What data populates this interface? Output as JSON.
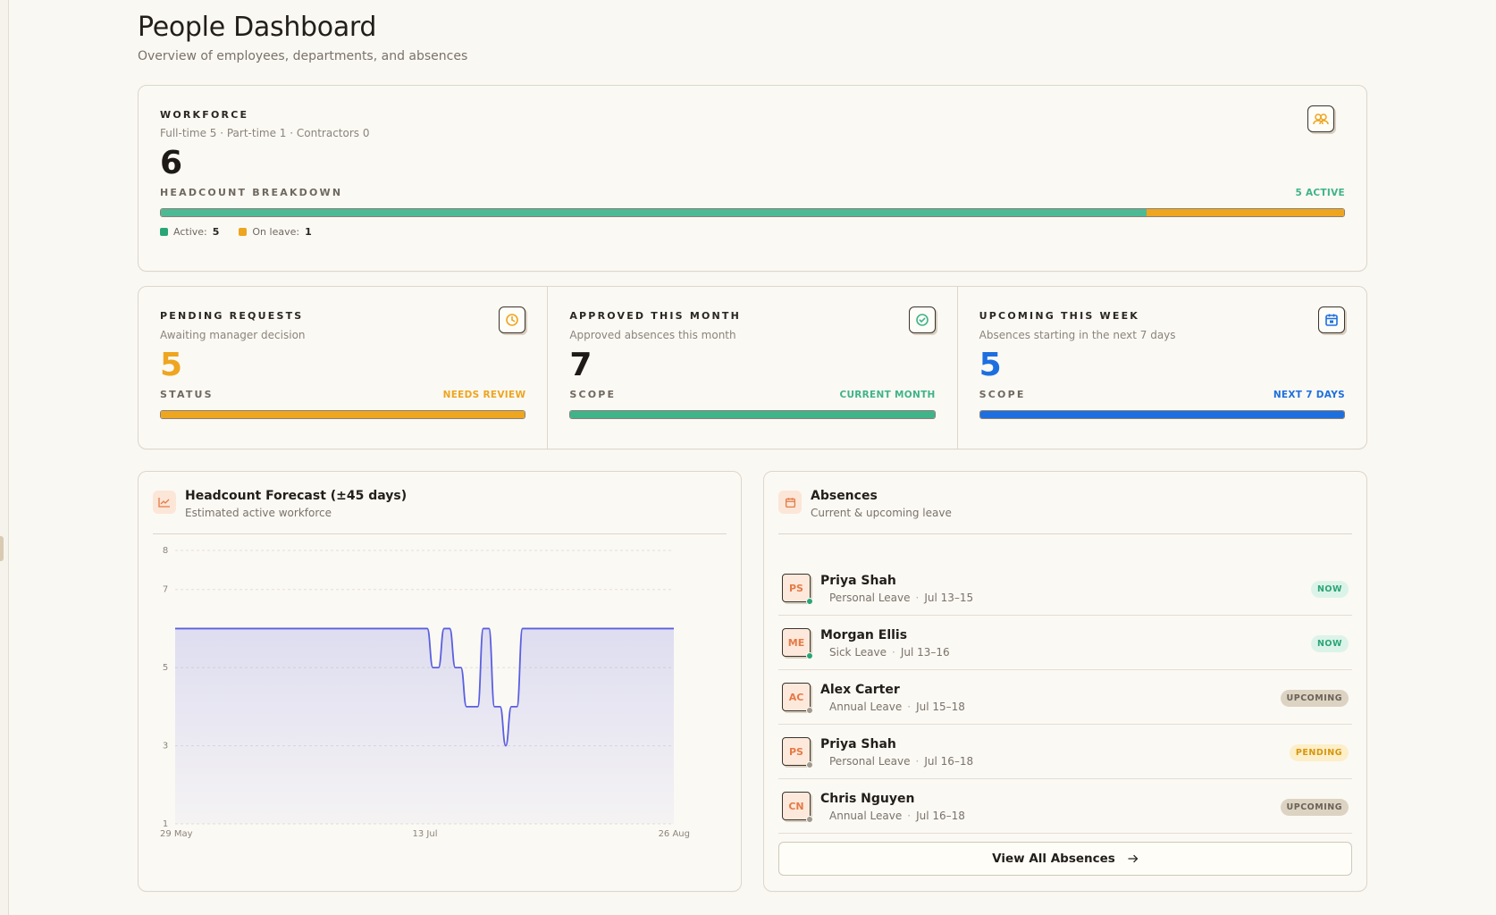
{
  "page": {
    "title": "People Dashboard",
    "subtitle": "Overview of employees, departments, and absences"
  },
  "workforce": {
    "label": "WORKFORCE",
    "breakdown_text": "Full-time 5 · Part-time 1 · Contractors 0",
    "total": "6",
    "bar_label": "HEADCOUNT BREAKDOWN",
    "active_tag": "5 ACTIVE",
    "active_count": 5,
    "on_leave_count": 1,
    "legend": {
      "active_label": "Active:",
      "active_value": "5",
      "leave_label": "On leave:",
      "leave_value": "1"
    },
    "icon": "people-icon"
  },
  "stats": [
    {
      "label": "PENDING REQUESTS",
      "subtitle": "Awaiting manager decision",
      "value": "5",
      "bar_label": "STATUS",
      "tag": "NEEDS REVIEW",
      "color": "#eea51f",
      "fill": 1.0,
      "icon": "clock-icon"
    },
    {
      "label": "APPROVED THIS MONTH",
      "subtitle": "Approved absences this month",
      "value": "7",
      "bar_label": "SCOPE",
      "tag": "CURRENT MONTH",
      "color": "#3fb38a",
      "fill": 1.0,
      "icon": "check-circle-icon"
    },
    {
      "label": "UPCOMING THIS WEEK",
      "subtitle": "Absences starting in the next 7 days",
      "value": "5",
      "bar_label": "SCOPE",
      "tag": "NEXT 7 DAYS",
      "color": "#1d6fe0",
      "fill": 1.0,
      "icon": "calendar-icon"
    }
  ],
  "colors": {
    "active": "#4dba96",
    "leave": "#eea51f",
    "line": "#5a5fe0",
    "now_bg": "#dcf3e9",
    "now_fg": "#2aa676",
    "upcoming_bg": "#dcd3c3",
    "upcoming_fg": "#6b6257",
    "pending_bg": "#fcefc9",
    "pending_fg": "#d6960d"
  },
  "forecast": {
    "title": "Headcount Forecast (±45 days)",
    "subtitle": "Estimated active workforce",
    "icon": "line-chart-icon"
  },
  "chart_data": {
    "type": "area",
    "title": "Headcount Forecast (±45 days)",
    "xlabel": "",
    "ylabel": "",
    "x_ticks": [
      "29 May",
      "13 Jul",
      "26 Aug"
    ],
    "y_ticks": [
      1,
      3,
      5,
      7,
      8
    ],
    "ylim": [
      1,
      8
    ],
    "xlim": [
      0,
      89
    ],
    "grid": true,
    "series": [
      {
        "x": [
          0,
          45,
          46,
          47,
          48,
          49,
          50,
          51,
          52,
          53,
          54,
          55,
          56,
          57,
          58,
          59,
          60,
          61,
          62,
          63,
          89
        ],
        "values": [
          6,
          6,
          5,
          5,
          6,
          6,
          5,
          5,
          4,
          4,
          4,
          6,
          6,
          4,
          4,
          3,
          4,
          4,
          6,
          6,
          6
        ]
      }
    ]
  },
  "absences": {
    "title": "Absences",
    "subtitle": "Current & upcoming leave",
    "icon": "calendar-icon",
    "view_all": "View All Absences",
    "items": [
      {
        "initials": "PS",
        "name": "Priya Shah",
        "type": "Personal Leave",
        "dates": "Jul 13–15",
        "status": "NOW",
        "dot": "#2aa676"
      },
      {
        "initials": "ME",
        "name": "Morgan Ellis",
        "type": "Sick Leave",
        "dates": "Jul 13–16",
        "status": "NOW",
        "dot": "#2aa676"
      },
      {
        "initials": "AC",
        "name": "Alex Carter",
        "type": "Annual Leave",
        "dates": "Jul 15–18",
        "status": "UPCOMING",
        "dot": "#a39a8e"
      },
      {
        "initials": "PS",
        "name": "Priya Shah",
        "type": "Personal Leave",
        "dates": "Jul 16–18",
        "status": "PENDING",
        "dot": "#a39a8e"
      },
      {
        "initials": "CN",
        "name": "Chris Nguyen",
        "type": "Annual Leave",
        "dates": "Jul 16–18",
        "status": "UPCOMING",
        "dot": "#a39a8e"
      }
    ]
  }
}
